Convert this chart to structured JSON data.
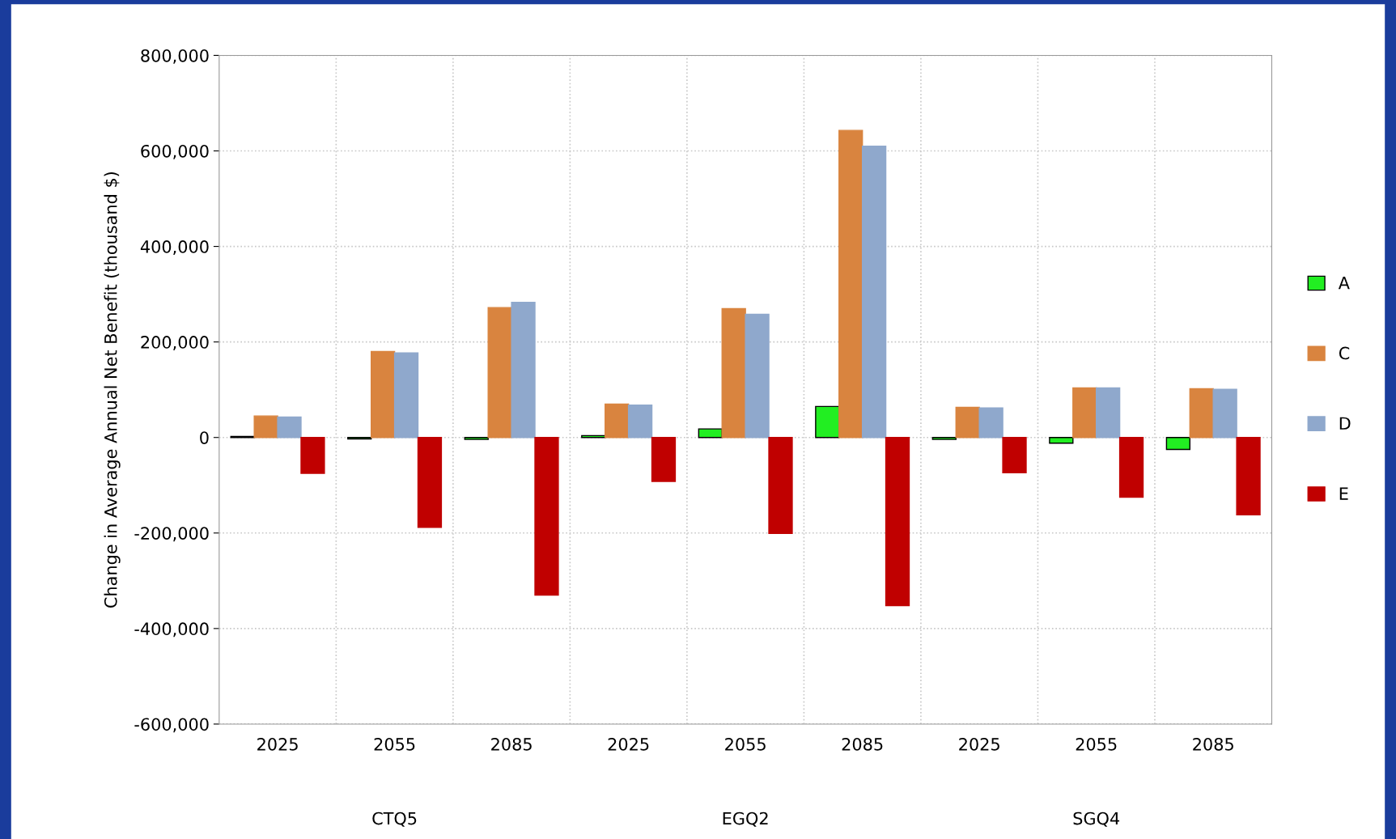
{
  "chart_data": {
    "type": "bar",
    "ylabel": "Change in Average Annual Net Benefit (thousand $)",
    "categories": [
      "2025",
      "2055",
      "2085",
      "2025",
      "2055",
      "2085",
      "2025",
      "2055",
      "2085"
    ],
    "series": [
      {
        "name": "A",
        "color": "#22ee22",
        "values": [
          2000,
          -3000,
          -4000,
          4000,
          18000,
          65000,
          -4000,
          -12000,
          -25000
        ]
      },
      {
        "name": "C",
        "color": "#d9843f",
        "values": [
          45000,
          180000,
          272000,
          70000,
          270000,
          643000,
          63000,
          104000,
          102000
        ]
      },
      {
        "name": "D",
        "color": "#8fa8cc",
        "values": [
          43000,
          177000,
          283000,
          68000,
          258000,
          610000,
          62000,
          104000,
          101000
        ]
      },
      {
        "name": "E",
        "color": "#c00000",
        "values": [
          -75000,
          -188000,
          -330000,
          -92000,
          -201000,
          -352000,
          -74000,
          -125000,
          -162000
        ]
      }
    ],
    "annotations": [
      "CTQ5",
      "EGQ2",
      "SGQ4"
    ],
    "ylim": [
      -600000,
      800000
    ],
    "yticks": [
      {
        "value": -600000,
        "label": "-600,000"
      },
      {
        "value": -400000,
        "label": "-400,000"
      },
      {
        "value": -200000,
        "label": "-200,000"
      },
      0,
      {
        "value": 200000,
        "label": "200,000"
      },
      {
        "value": 400000,
        "label": "400,000"
      },
      {
        "value": 600000,
        "label": "600,000"
      },
      {
        "value": 800000,
        "label": "800,000"
      }
    ],
    "grid": true,
    "legend": "right"
  }
}
